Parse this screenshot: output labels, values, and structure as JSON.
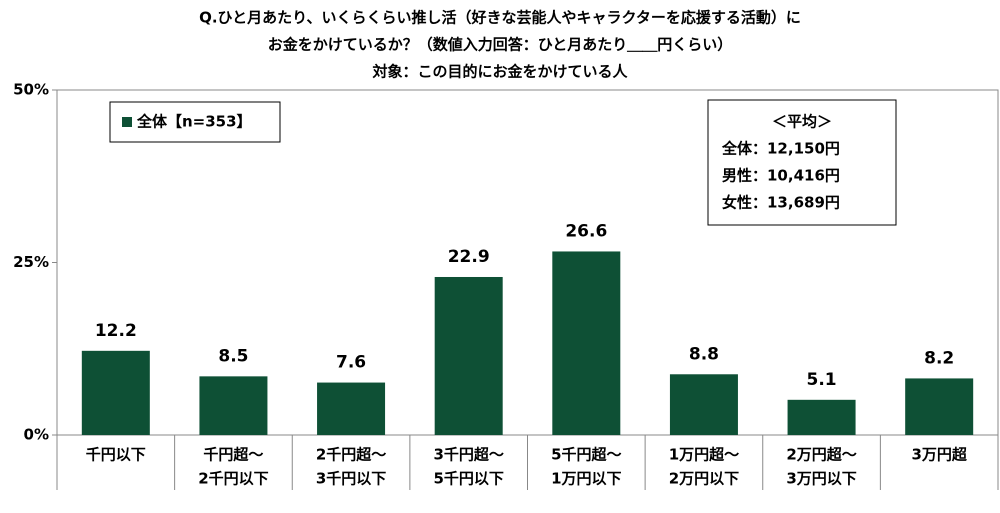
{
  "chart_data": {
    "type": "bar",
    "title": [
      "Q.ひと月あたり、いくらくらい推し活（好きな芸能人やキャラクターを応援する活動）に",
      "お金をかけているか？（数値入力回答：ひと月あたり＿＿円くらい）",
      "対象：この目的にお金をかけている人"
    ],
    "categories": [
      [
        "千円以下"
      ],
      [
        "千円超～",
        "2千円以下"
      ],
      [
        "2千円超～",
        "3千円以下"
      ],
      [
        "3千円超～",
        "5千円以下"
      ],
      [
        "5千円超～",
        "1万円以下"
      ],
      [
        "1万円超～",
        "2万円以下"
      ],
      [
        "2万円超～",
        "3万円以下"
      ],
      [
        "3万円超"
      ]
    ],
    "series": [
      {
        "name": "全体【n=353】",
        "color": "#0e5035",
        "values": [
          12.2,
          8.5,
          7.6,
          22.9,
          26.6,
          8.8,
          5.1,
          8.2
        ]
      }
    ],
    "ylim": [
      0,
      50
    ],
    "yticks": [
      {
        "value": 0,
        "label": "0%"
      },
      {
        "value": 25,
        "label": "25%"
      },
      {
        "value": 50,
        "label": "50%"
      }
    ],
    "annotation": [
      "＜平均＞",
      "全体：12,150円",
      "男性：10,416円",
      "女性：13,689円"
    ]
  }
}
